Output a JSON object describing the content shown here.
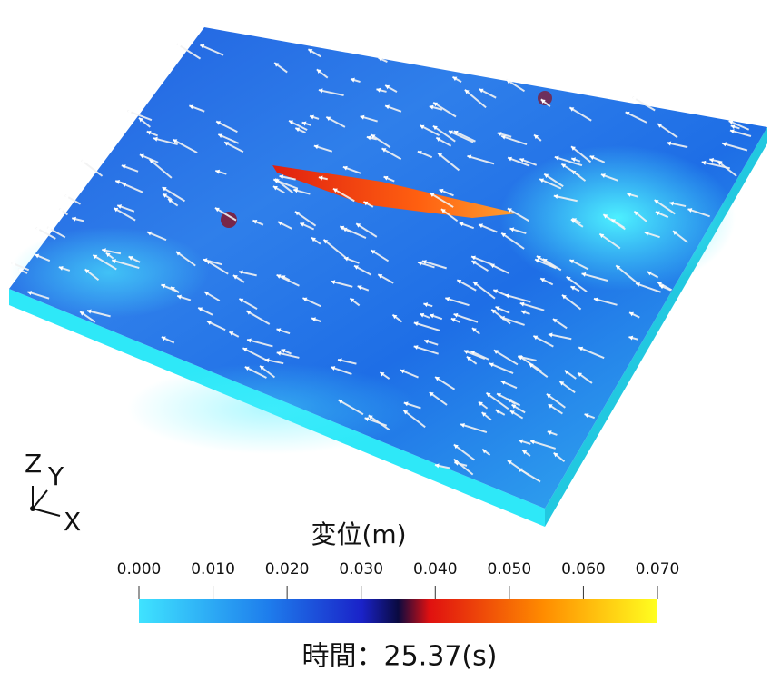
{
  "colorbar": {
    "title": "変位(m)",
    "ticks": [
      "0.000",
      "0.010",
      "0.020",
      "0.030",
      "0.040",
      "0.050",
      "0.060",
      "0.070"
    ]
  },
  "axes": {
    "z": "Z",
    "y": "Y",
    "x": "X"
  },
  "time_label": "時間：25.37(s)"
}
